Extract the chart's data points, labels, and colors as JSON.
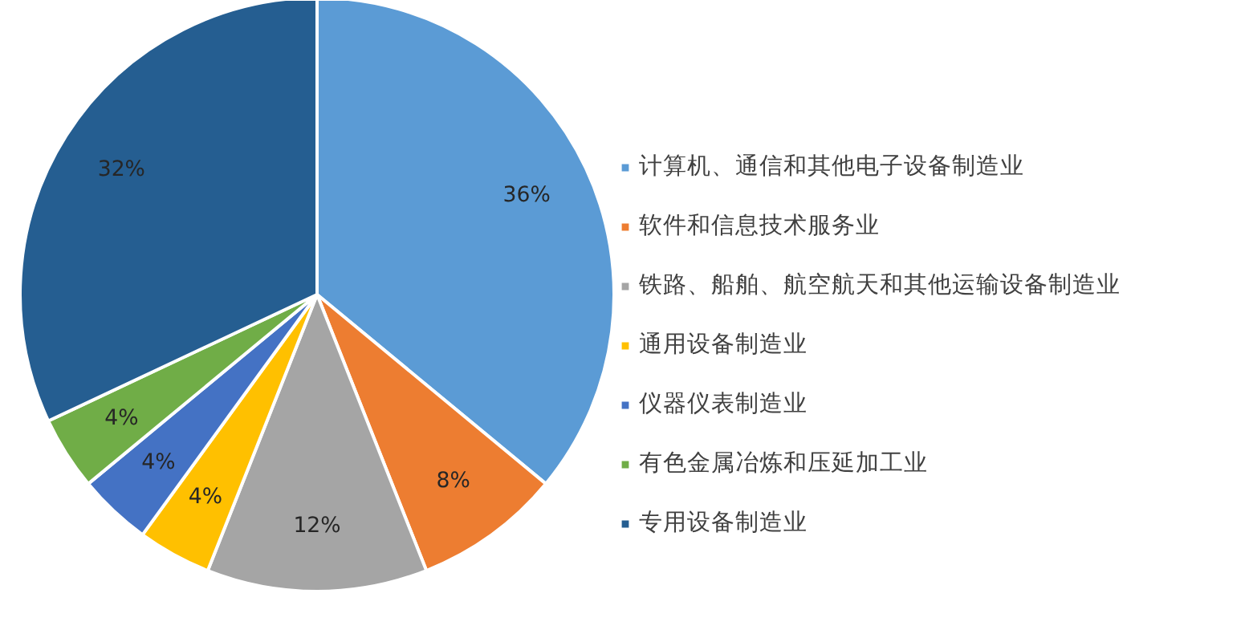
{
  "chart_data": {
    "type": "pie",
    "categories": [
      "计算机、通信和其他电子设备制造业",
      "软件和信息技术服务业",
      "铁路、船舶、航空航天和其他运输设备制造业",
      "通用设备制造业",
      "仪器仪表制造业",
      "有色金属冶炼和压延加工业",
      "专用设备制造业"
    ],
    "values": [
      36,
      8,
      12,
      4,
      4,
      4,
      32
    ],
    "colors": [
      "#5b9bd5",
      "#ed7d31",
      "#a5a5a5",
      "#ffc000",
      "#4472c4",
      "#70ad47",
      "#255e91"
    ],
    "value_labels": [
      "36%",
      "8%",
      "12%",
      "4%",
      "4%",
      "4%",
      "32%"
    ],
    "legend": "right"
  }
}
